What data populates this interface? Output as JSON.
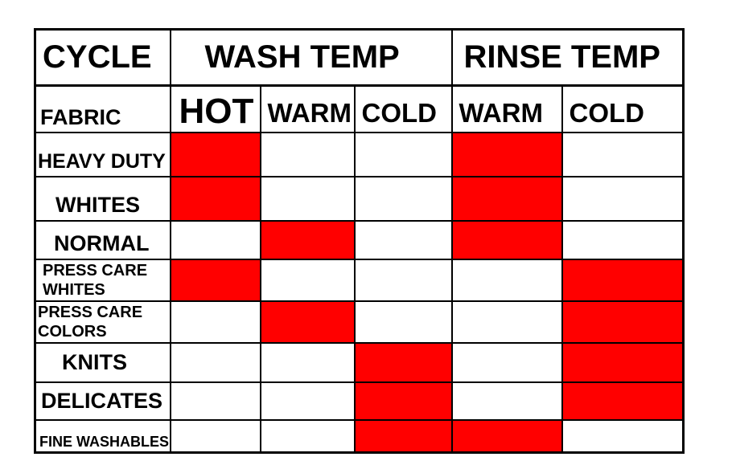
{
  "header": {
    "cycle_label": "CYCLE",
    "fabric_label": "FABRIC",
    "wash_group": "WASH TEMP",
    "rinse_group": "RINSE TEMP",
    "wash_columns": [
      "HOT",
      "WARM",
      "COLD"
    ],
    "rinse_columns": [
      "WARM",
      "COLD"
    ]
  },
  "rows": [
    {
      "name": "HEAVY DUTY",
      "marks": [
        true,
        false,
        false,
        true,
        false
      ]
    },
    {
      "name": "WHITES",
      "marks": [
        true,
        false,
        false,
        true,
        false
      ]
    },
    {
      "name": "NORMAL",
      "marks": [
        false,
        true,
        false,
        true,
        false
      ]
    },
    {
      "name_lines": [
        "PRESS CARE",
        "WHITES"
      ],
      "marks": [
        true,
        false,
        false,
        false,
        true
      ]
    },
    {
      "name_lines": [
        "PRESS CARE",
        "COLORS"
      ],
      "marks": [
        false,
        true,
        false,
        false,
        true
      ]
    },
    {
      "name": "KNITS",
      "marks": [
        false,
        false,
        true,
        false,
        true
      ]
    },
    {
      "name": "DELICATES",
      "marks": [
        false,
        false,
        true,
        false,
        true
      ]
    },
    {
      "name": "FINE WASHABLES",
      "marks": [
        false,
        false,
        true,
        true,
        false
      ]
    }
  ],
  "colors": {
    "marked": "#ff0000",
    "unmarked": "#ffffff",
    "grid": "#000000"
  }
}
